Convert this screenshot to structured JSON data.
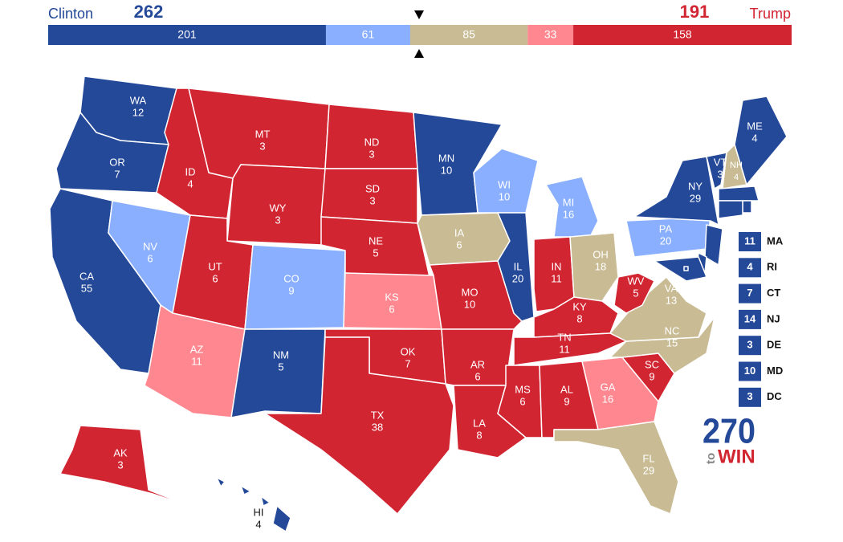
{
  "header": {
    "left": {
      "name": "Clinton",
      "total": 262,
      "color": "#244999"
    },
    "right": {
      "name": "Trump",
      "total": 191,
      "color": "#d22532"
    },
    "segments": [
      {
        "value": 201,
        "color": "#244999"
      },
      {
        "value": 61,
        "color": "#8aafff"
      },
      {
        "value": 85,
        "color": "#c9bc94"
      },
      {
        "value": 33,
        "color": "#ff8890"
      },
      {
        "value": 158,
        "color": "#d22532"
      }
    ]
  },
  "states": [
    {
      "abbr": "WA",
      "votes": 12,
      "color": "#244999"
    },
    {
      "abbr": "OR",
      "votes": 7,
      "color": "#244999"
    },
    {
      "abbr": "CA",
      "votes": 55,
      "color": "#244999"
    },
    {
      "abbr": "NV",
      "votes": 6,
      "color": "#8aafff"
    },
    {
      "abbr": "ID",
      "votes": 4,
      "color": "#d22532"
    },
    {
      "abbr": "MT",
      "votes": 3,
      "color": "#d22532"
    },
    {
      "abbr": "WY",
      "votes": 3,
      "color": "#d22532"
    },
    {
      "abbr": "UT",
      "votes": 6,
      "color": "#d22532"
    },
    {
      "abbr": "AZ",
      "votes": 11,
      "color": "#ff8890"
    },
    {
      "abbr": "CO",
      "votes": 9,
      "color": "#8aafff"
    },
    {
      "abbr": "NM",
      "votes": 5,
      "color": "#244999"
    },
    {
      "abbr": "ND",
      "votes": 3,
      "color": "#d22532"
    },
    {
      "abbr": "SD",
      "votes": 3,
      "color": "#d22532"
    },
    {
      "abbr": "NE",
      "votes": 5,
      "color": "#d22532"
    },
    {
      "abbr": "KS",
      "votes": 6,
      "color": "#ff8890"
    },
    {
      "abbr": "OK",
      "votes": 7,
      "color": "#d22532"
    },
    {
      "abbr": "TX",
      "votes": 38,
      "color": "#d22532"
    },
    {
      "abbr": "MN",
      "votes": 10,
      "color": "#244999"
    },
    {
      "abbr": "IA",
      "votes": 6,
      "color": "#c9bc94"
    },
    {
      "abbr": "MO",
      "votes": 10,
      "color": "#d22532"
    },
    {
      "abbr": "AR",
      "votes": 6,
      "color": "#d22532"
    },
    {
      "abbr": "LA",
      "votes": 8,
      "color": "#d22532"
    },
    {
      "abbr": "WI",
      "votes": 10,
      "color": "#8aafff"
    },
    {
      "abbr": "IL",
      "votes": 20,
      "color": "#244999"
    },
    {
      "abbr": "MI",
      "votes": 16,
      "color": "#8aafff"
    },
    {
      "abbr": "IN",
      "votes": 11,
      "color": "#d22532"
    },
    {
      "abbr": "OH",
      "votes": 18,
      "color": "#c9bc94"
    },
    {
      "abbr": "KY",
      "votes": 8,
      "color": "#d22532"
    },
    {
      "abbr": "TN",
      "votes": 11,
      "color": "#d22532"
    },
    {
      "abbr": "MS",
      "votes": 6,
      "color": "#d22532"
    },
    {
      "abbr": "AL",
      "votes": 9,
      "color": "#d22532"
    },
    {
      "abbr": "GA",
      "votes": 16,
      "color": "#ff8890"
    },
    {
      "abbr": "FL",
      "votes": 29,
      "color": "#c9bc94"
    },
    {
      "abbr": "SC",
      "votes": 9,
      "color": "#d22532"
    },
    {
      "abbr": "NC",
      "votes": 15,
      "color": "#c9bc94"
    },
    {
      "abbr": "VA",
      "votes": 13,
      "color": "#c9bc94"
    },
    {
      "abbr": "WV",
      "votes": 5,
      "color": "#d22532"
    },
    {
      "abbr": "PA",
      "votes": 20,
      "color": "#8aafff"
    },
    {
      "abbr": "NY",
      "votes": 29,
      "color": "#244999"
    },
    {
      "abbr": "VT",
      "votes": 3,
      "color": "#244999"
    },
    {
      "abbr": "NH",
      "votes": 4,
      "color": "#c9bc94"
    },
    {
      "abbr": "ME",
      "votes": 4,
      "color": "#244999"
    },
    {
      "abbr": "AK",
      "votes": 3,
      "color": "#d22532"
    },
    {
      "abbr": "HI",
      "votes": 4,
      "color": "#244999"
    },
    {
      "abbr": "MA",
      "votes": 11,
      "color": "#244999",
      "callout": true
    },
    {
      "abbr": "RI",
      "votes": 4,
      "color": "#244999",
      "callout": true
    },
    {
      "abbr": "CT",
      "votes": 7,
      "color": "#244999",
      "callout": true
    },
    {
      "abbr": "NJ",
      "votes": 14,
      "color": "#244999",
      "callout": true
    },
    {
      "abbr": "DE",
      "votes": 3,
      "color": "#244999",
      "callout": true
    },
    {
      "abbr": "MD",
      "votes": 10,
      "color": "#244999",
      "callout": true
    },
    {
      "abbr": "DC",
      "votes": 3,
      "color": "#244999",
      "callout": true
    }
  ],
  "logo": {
    "number": "270",
    "to": "to",
    "win": "WIN"
  }
}
